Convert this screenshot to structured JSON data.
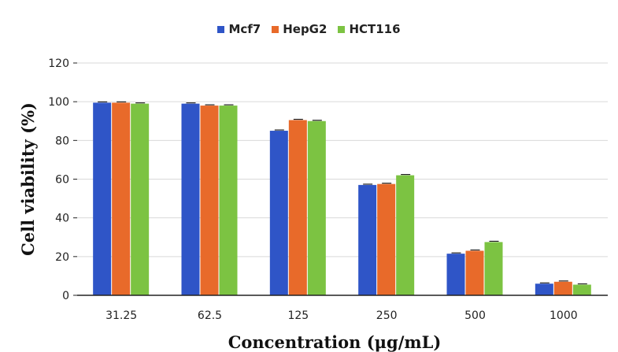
{
  "chart_data": {
    "type": "bar",
    "xlabel": "Concentration (μg/mL)",
    "ylabel": "Cell viability (%)",
    "categories": [
      "31.25",
      "62.5",
      "125",
      "250",
      "500",
      "1000"
    ],
    "ylim": [
      0,
      120
    ],
    "yticks": [
      0,
      20,
      40,
      60,
      80,
      100,
      120
    ],
    "grid": true,
    "legend": "top",
    "series": [
      {
        "name": "Mcf7",
        "color": "#2f55c7",
        "values": [
          99.5,
          99,
          85,
          57,
          21.5,
          6
        ]
      },
      {
        "name": "HepG2",
        "color": "#e86a2a",
        "values": [
          99.5,
          98,
          90.5,
          57.5,
          23,
          7
        ]
      },
      {
        "name": "HCT116",
        "color": "#7cc342",
        "values": [
          99,
          98,
          90,
          62,
          27.5,
          5.5
        ]
      }
    ]
  }
}
